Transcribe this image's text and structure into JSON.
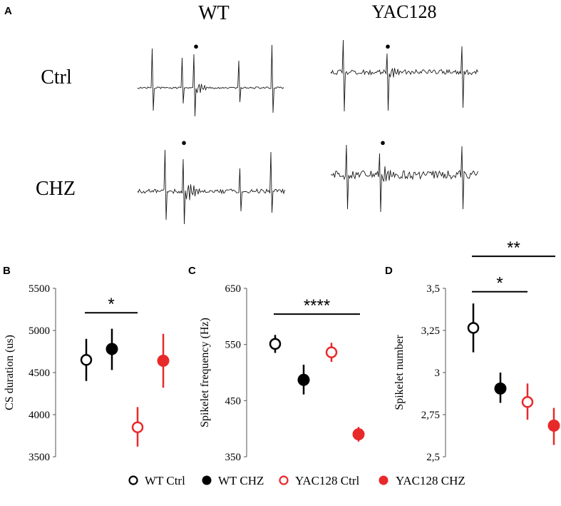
{
  "panel_a": {
    "letter": "A",
    "columns": [
      "WT",
      "YAC128"
    ],
    "rows": [
      "Ctrl",
      "CHZ"
    ],
    "marker": "●"
  },
  "legend": {
    "items": [
      {
        "label": "WT Ctrl",
        "style": "open",
        "color": "#000000"
      },
      {
        "label": "WT CHZ",
        "style": "filled",
        "color": "#000000"
      },
      {
        "label": "YAC128 Ctrl",
        "style": "open",
        "color": "#e8292a"
      },
      {
        "label": "YAC128 CHZ",
        "style": "filled",
        "color": "#e8292a"
      }
    ]
  },
  "chart_data": [
    {
      "panel": "B",
      "type": "scatter",
      "ylabel": "CS duration (us)",
      "ylim": [
        3500,
        5500
      ],
      "yticks": [
        "3500",
        "4000",
        "4500",
        "5000",
        "5500"
      ],
      "ytick_values": [
        3500,
        4000,
        4500,
        5000,
        5500
      ],
      "points": [
        {
          "group": "WT Ctrl",
          "mean": 4650,
          "low": 4400,
          "high": 4900
        },
        {
          "group": "WT CHZ",
          "mean": 4780,
          "low": 4530,
          "high": 5020
        },
        {
          "group": "YAC128 Ctrl",
          "mean": 3850,
          "low": 3620,
          "high": 4090
        },
        {
          "group": "YAC128 CHZ",
          "mean": 4640,
          "low": 4320,
          "high": 4960
        }
      ],
      "significance": [
        {
          "from": 0,
          "to": 2,
          "label": "*",
          "level": 5210
        }
      ]
    },
    {
      "panel": "C",
      "type": "scatter",
      "ylabel": "Spikelet frequency (Hz)",
      "ylim": [
        350,
        650
      ],
      "yticks": [
        "350",
        "450",
        "550",
        "650"
      ],
      "ytick_values": [
        350,
        450,
        550,
        650
      ],
      "points": [
        {
          "group": "WT Ctrl",
          "mean": 551,
          "low": 535,
          "high": 567
        },
        {
          "group": "WT CHZ",
          "mean": 487,
          "low": 461,
          "high": 514
        },
        {
          "group": "YAC128 Ctrl",
          "mean": 536,
          "low": 519,
          "high": 553
        },
        {
          "group": "YAC128 CHZ",
          "mean": 390,
          "low": 377,
          "high": 403
        }
      ],
      "significance": [
        {
          "from": 0,
          "to": 3,
          "label": "****",
          "level": 604
        }
      ]
    },
    {
      "panel": "D",
      "type": "scatter",
      "ylabel": "Spikelet number",
      "ylim": [
        2.5,
        3.5
      ],
      "yticks": [
        "2,5",
        "2,75",
        "3",
        "3,25",
        "3,5"
      ],
      "ytick_values": [
        2.5,
        2.75,
        3,
        3.25,
        3.5
      ],
      "points": [
        {
          "group": "WT Ctrl",
          "mean": 3.265,
          "low": 3.12,
          "high": 3.41
        },
        {
          "group": "WT CHZ",
          "mean": 2.905,
          "low": 2.82,
          "high": 3.0
        },
        {
          "group": "YAC128 Ctrl",
          "mean": 2.825,
          "low": 2.72,
          "high": 2.935
        },
        {
          "group": "YAC128 CHZ",
          "mean": 2.685,
          "low": 2.57,
          "high": 2.79
        }
      ],
      "significance": [
        {
          "from": 0,
          "to": 2,
          "label": "*",
          "level": 3.48
        },
        {
          "from": 0,
          "to": 3,
          "label": "**",
          "level": 3.69
        }
      ]
    }
  ]
}
